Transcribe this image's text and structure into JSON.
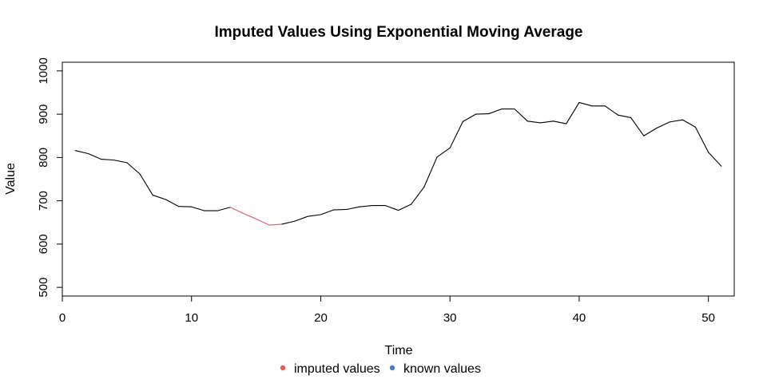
{
  "chart_data": {
    "type": "line",
    "title": "Imputed Values Using Exponential Moving Average",
    "xlabel": "Time",
    "ylabel": "Value",
    "xlim": [
      0,
      52
    ],
    "ylim": [
      480,
      1020
    ],
    "x_ticks": [
      0,
      10,
      20,
      30,
      40,
      50
    ],
    "y_ticks": [
      500,
      600,
      700,
      800,
      900,
      1000
    ],
    "grid": false,
    "legend_position": "bottom",
    "colors": {
      "imputed": "#e8595a",
      "known": "#4a7fb5",
      "line": "#000000"
    },
    "x": [
      1,
      2,
      3,
      4,
      5,
      6,
      7,
      8,
      9,
      10,
      11,
      12,
      13,
      14,
      15,
      16,
      17,
      18,
      19,
      20,
      21,
      22,
      23,
      24,
      25,
      26,
      27,
      28,
      29,
      30,
      31,
      32,
      33,
      34,
      35,
      36,
      37,
      38,
      39,
      40,
      41,
      42,
      43,
      44,
      45,
      46,
      47,
      48,
      49,
      50,
      51
    ],
    "values": [
      816,
      809,
      796,
      794,
      788,
      762,
      713,
      703,
      687,
      686,
      677,
      677,
      685,
      671,
      658,
      644,
      646,
      653,
      664,
      668,
      679,
      680,
      686,
      689,
      689,
      678,
      692,
      732,
      801,
      822,
      883,
      900,
      901,
      912,
      912,
      884,
      880,
      884,
      878,
      927,
      919,
      919,
      898,
      892,
      850,
      868,
      882,
      887,
      870,
      812,
      780
    ],
    "imputed_indices": [
      13,
      14,
      15
    ],
    "series": [
      {
        "name": "imputed values",
        "color_key": "imputed"
      },
      {
        "name": "known values",
        "color_key": "known"
      }
    ]
  }
}
